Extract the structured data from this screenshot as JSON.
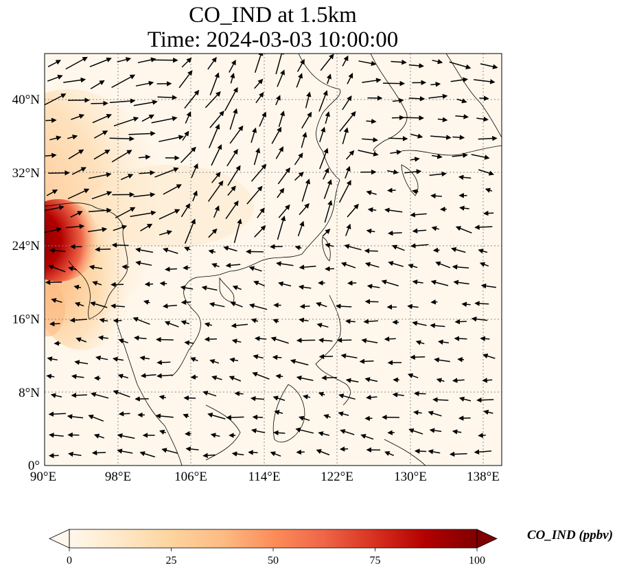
{
  "title": {
    "line1": "CO_IND at 1.5km",
    "line2": "Time: 2024-03-03 10:00:00"
  },
  "colorbar": {
    "label": "CO_IND (ppbv)",
    "ticks": [
      "0",
      "25",
      "50",
      "75",
      "100"
    ],
    "range": [
      0,
      100
    ],
    "extend": "both",
    "colormap": "OrRd",
    "colors": [
      "#fff7ec",
      "#fee8c8",
      "#fdd49e",
      "#fdbb84",
      "#fc8d59",
      "#ef6548",
      "#d7301f",
      "#b30000",
      "#7f0000"
    ]
  },
  "map": {
    "lon_range": [
      90,
      140
    ],
    "lat_range": [
      0,
      45
    ],
    "lon_ticks": [
      "90°E",
      "98°E",
      "106°E",
      "114°E",
      "122°E",
      "130°E",
      "138°E"
    ],
    "lat_ticks": [
      "0°",
      "8°N",
      "16°N",
      "24°N",
      "32°N",
      "40°N"
    ],
    "gridlines": true,
    "wind_vectors": true,
    "coastlines": true
  }
}
